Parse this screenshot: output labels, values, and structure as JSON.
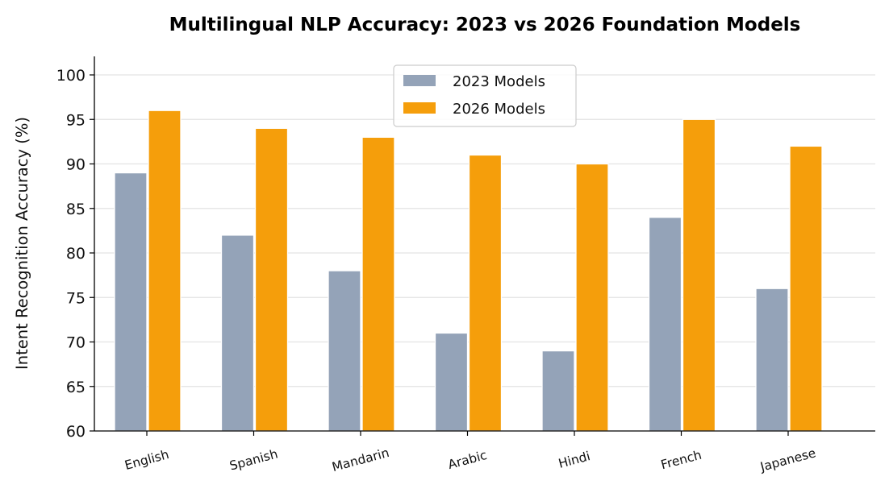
{
  "chart_data": {
    "type": "bar",
    "title": "Multilingual NLP Accuracy: 2023 vs 2026 Foundation Models",
    "xlabel": "",
    "ylabel": "Intent Recognition Accuracy (%)",
    "ylim": [
      60,
      102
    ],
    "yticks": [
      60,
      65,
      70,
      75,
      80,
      85,
      90,
      95,
      100
    ],
    "categories": [
      "English",
      "Spanish",
      "Mandarin",
      "Arabic",
      "Hindi",
      "French",
      "Japanese"
    ],
    "series": [
      {
        "name": "2023 Models",
        "color": "#94a3b8",
        "values": [
          89,
          82,
          78,
          71,
          69,
          84,
          76
        ]
      },
      {
        "name": "2026 Models",
        "color": "#f59e0b",
        "values": [
          96,
          94,
          93,
          91,
          90,
          95,
          92
        ]
      }
    ],
    "grid": "horizontal",
    "legend_position": "top-center"
  }
}
